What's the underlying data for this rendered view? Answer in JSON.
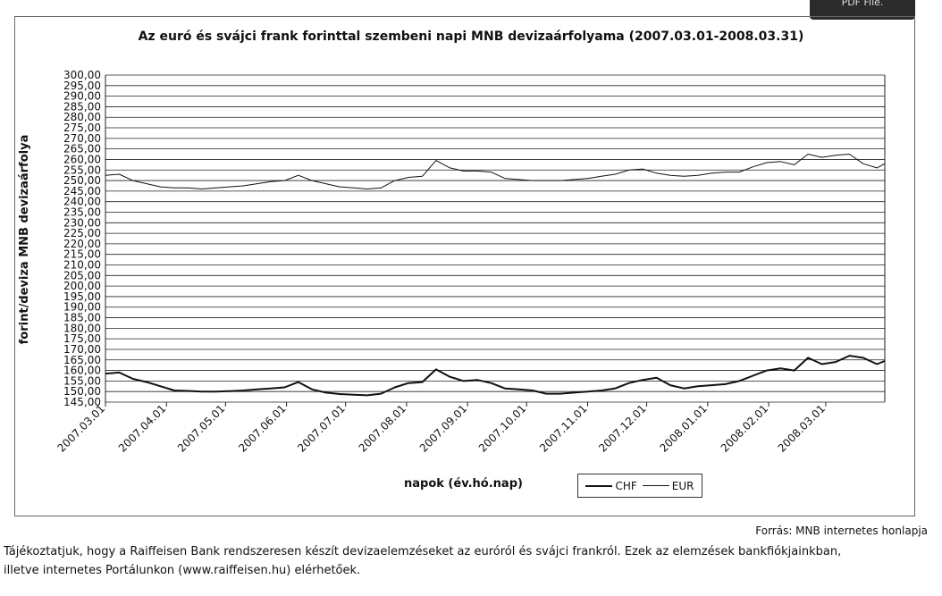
{
  "top_tab_label": "PDF File.",
  "chart_data": {
    "type": "line",
    "title": "Az euró és svájci frank forinttal szembeni napi MNB devizaárfolyama (2007.03.01-2008.03.31)",
    "ylabel": "forint/deviza MNB devizaárfolya",
    "xlabel": "napok (év.hó.nap)",
    "ylim": [
      145,
      300
    ],
    "y_ticks": [
      "300,00",
      "295,00",
      "290,00",
      "285,00",
      "280,00",
      "275,00",
      "270,00",
      "265,00",
      "260,00",
      "255,00",
      "250,00",
      "245,00",
      "240,00",
      "235,00",
      "230,00",
      "225,00",
      "220,00",
      "215,00",
      "210,00",
      "205,00",
      "200,00",
      "195,00",
      "190,00",
      "185,00",
      "180,00",
      "175,00",
      "170,00",
      "165,00",
      "160,00",
      "155,00",
      "150,00",
      "145,00"
    ],
    "x_ticks": [
      "2007.03.01",
      "2007.04.01",
      "2007.05.01",
      "2007.06.01",
      "2007.07.01",
      "2007.08.01",
      "2007.09.01",
      "2007.10.01",
      "2007.11.01",
      "2007.12.01",
      "2008.01.01",
      "2008.02.01",
      "2008.03.01"
    ],
    "grid": "horizontal",
    "legend_placement": "bottom",
    "x": [
      "2007.03.01",
      "2007.03.08",
      "2007.03.15",
      "2007.03.22",
      "2007.03.29",
      "2007.04.05",
      "2007.04.12",
      "2007.04.19",
      "2007.04.26",
      "2007.05.03",
      "2007.05.10",
      "2007.05.17",
      "2007.05.24",
      "2007.05.31",
      "2007.06.07",
      "2007.06.14",
      "2007.06.21",
      "2007.06.28",
      "2007.07.05",
      "2007.07.12",
      "2007.07.19",
      "2007.07.26",
      "2007.08.02",
      "2007.08.09",
      "2007.08.16",
      "2007.08.23",
      "2007.08.30",
      "2007.09.06",
      "2007.09.13",
      "2007.09.20",
      "2007.09.27",
      "2007.10.04",
      "2007.10.11",
      "2007.10.18",
      "2007.10.25",
      "2007.11.01",
      "2007.11.08",
      "2007.11.15",
      "2007.11.22",
      "2007.11.29",
      "2007.12.06",
      "2007.12.13",
      "2007.12.20",
      "2007.12.27",
      "2008.01.03",
      "2008.01.10",
      "2008.01.17",
      "2008.01.24",
      "2008.01.31",
      "2008.02.07",
      "2008.02.14",
      "2008.02.21",
      "2008.02.28",
      "2008.03.06",
      "2008.03.13",
      "2008.03.20",
      "2008.03.27",
      "2008.03.31"
    ],
    "series": [
      {
        "name": "CHF",
        "line": "thick",
        "values": [
          158.5,
          159.0,
          156.0,
          154.5,
          152.5,
          150.5,
          150.3,
          150.0,
          150.0,
          150.2,
          150.5,
          151.0,
          151.5,
          152.0,
          154.5,
          151.0,
          149.5,
          148.8,
          148.5,
          148.2,
          149.0,
          152.0,
          154.0,
          154.5,
          160.5,
          157.0,
          155.0,
          155.5,
          154.0,
          151.5,
          151.0,
          150.5,
          149.0,
          149.0,
          149.5,
          150.0,
          150.5,
          151.5,
          154.0,
          155.5,
          156.5,
          153.0,
          151.5,
          152.5,
          153.0,
          153.5,
          155.0,
          157.5,
          160.0,
          161.0,
          160.0,
          166.0,
          163.0,
          164.0,
          167.0,
          166.0,
          163.0,
          164.5
        ]
      },
      {
        "name": "EUR",
        "line": "thin",
        "values": [
          252.5,
          253.0,
          250.0,
          248.5,
          247.0,
          246.5,
          246.5,
          246.0,
          246.5,
          247.0,
          247.5,
          248.5,
          249.5,
          250.0,
          252.5,
          250.0,
          248.5,
          247.0,
          246.5,
          246.0,
          246.5,
          250.0,
          251.5,
          252.0,
          259.5,
          256.0,
          254.5,
          254.5,
          254.0,
          251.0,
          250.5,
          250.0,
          250.0,
          250.0,
          250.5,
          251.0,
          252.0,
          253.0,
          255.0,
          255.5,
          253.5,
          252.5,
          252.0,
          252.5,
          253.5,
          254.0,
          254.0,
          256.5,
          258.5,
          259.0,
          257.5,
          262.5,
          261.0,
          262.0,
          262.5,
          258.0,
          256.0,
          258.0
        ]
      }
    ]
  },
  "source_text": "Forrás: MNB internetes honlapja",
  "paragraph": {
    "line1": "Tájékoztatjuk, hogy a Raiffeisen Bank rendszeresen készít devizaelemzéseket az euróról és svájci frankról. Ezek az elemzések bankfiókjainkban,",
    "line2": "illetve internetes Portálunkon (www.raiffeisen.hu) elérhetőek."
  }
}
